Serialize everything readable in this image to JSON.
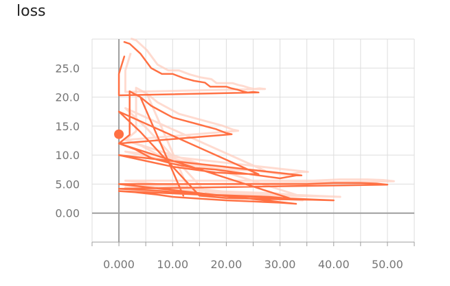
{
  "chart_data": {
    "type": "line",
    "title": "loss",
    "xlabel": "",
    "ylabel": "",
    "xlim": [
      -5,
      55
    ],
    "ylim": [
      -5,
      30
    ],
    "x_ticks": [
      0,
      10,
      20,
      30,
      40,
      50
    ],
    "x_tick_labels": [
      "0.000",
      "10.00",
      "20.00",
      "30.00",
      "40.00",
      "50.00"
    ],
    "y_ticks": [
      0,
      5,
      10,
      15,
      20,
      25
    ],
    "y_tick_labels": [
      "0.00",
      "5.00",
      "10.0",
      "15.0",
      "20.0",
      "25.0"
    ],
    "grid": true,
    "colors": {
      "line": "#ff7043",
      "smoothed": "#ffccbc",
      "axis": "#9e9e9e",
      "grid": "#dddddd"
    },
    "highlight_point": {
      "x": 0,
      "y": 13.6
    },
    "series": [
      {
        "values": [
          [
            1,
            29.5
          ],
          [
            2,
            29.2
          ],
          [
            4,
            27.5
          ],
          [
            6,
            25
          ],
          [
            8,
            24
          ],
          [
            10,
            24
          ],
          [
            12,
            23.3
          ],
          [
            14,
            22.8
          ],
          [
            16,
            22.5
          ],
          [
            17,
            21.8
          ],
          [
            18,
            21.8
          ],
          [
            20,
            21.8
          ],
          [
            21,
            21.5
          ],
          [
            22,
            21.3
          ],
          [
            23,
            21
          ],
          [
            24,
            20.8
          ],
          [
            25,
            20.9
          ],
          [
            26,
            20.8
          ],
          [
            0,
            20.3
          ],
          [
            0,
            24
          ],
          [
            1,
            27
          ]
        ]
      },
      {
        "values": [
          [
            2,
            21
          ],
          [
            4,
            20
          ],
          [
            6,
            18.5
          ],
          [
            8,
            17.5
          ],
          [
            10,
            16.5
          ],
          [
            12,
            16
          ],
          [
            14,
            15.5
          ],
          [
            16,
            15
          ],
          [
            18,
            14.5
          ],
          [
            20,
            13.8
          ],
          [
            21,
            13.6
          ],
          [
            0,
            12
          ],
          [
            3,
            11
          ],
          [
            6,
            9.5
          ],
          [
            10,
            8.5
          ],
          [
            14,
            7.8
          ],
          [
            18,
            7.5
          ],
          [
            22,
            7
          ],
          [
            26,
            6.5
          ],
          [
            30,
            6
          ],
          [
            33,
            6.5
          ],
          [
            34,
            6.5
          ],
          [
            0,
            10
          ],
          [
            5,
            9
          ],
          [
            10,
            8
          ],
          [
            14,
            7.5
          ],
          [
            18,
            7
          ],
          [
            22,
            6.8
          ],
          [
            26,
            6.7
          ],
          [
            0,
            17.5
          ],
          [
            4,
            14
          ],
          [
            8,
            10
          ],
          [
            12,
            6
          ],
          [
            15,
            3
          ],
          [
            20,
            2.6
          ],
          [
            28,
            2.4
          ],
          [
            36,
            2.3
          ],
          [
            40,
            2.2
          ],
          [
            0,
            3.8
          ],
          [
            3,
            3.6
          ],
          [
            5,
            3.4
          ],
          [
            7,
            3.2
          ],
          [
            10,
            2.8
          ],
          [
            15,
            2.5
          ],
          [
            20,
            2.2
          ],
          [
            25,
            2
          ],
          [
            30,
            1.8
          ],
          [
            33,
            1.6
          ],
          [
            0,
            5
          ],
          [
            10,
            5
          ],
          [
            20,
            5
          ],
          [
            30,
            5
          ],
          [
            35,
            5
          ],
          [
            40,
            5.2
          ],
          [
            45,
            5.2
          ],
          [
            48,
            5.1
          ],
          [
            50,
            4.9
          ],
          [
            0,
            4.2
          ],
          [
            4,
            4
          ],
          [
            8,
            3.8
          ],
          [
            12,
            3.5
          ],
          [
            16,
            3.2
          ],
          [
            22,
            3
          ],
          [
            28,
            2.8
          ],
          [
            32,
            2.5
          ],
          [
            0,
            12
          ],
          [
            2,
            13.5
          ],
          [
            2,
            21
          ],
          [
            4,
            20
          ],
          [
            12,
            3
          ]
        ]
      }
    ]
  }
}
